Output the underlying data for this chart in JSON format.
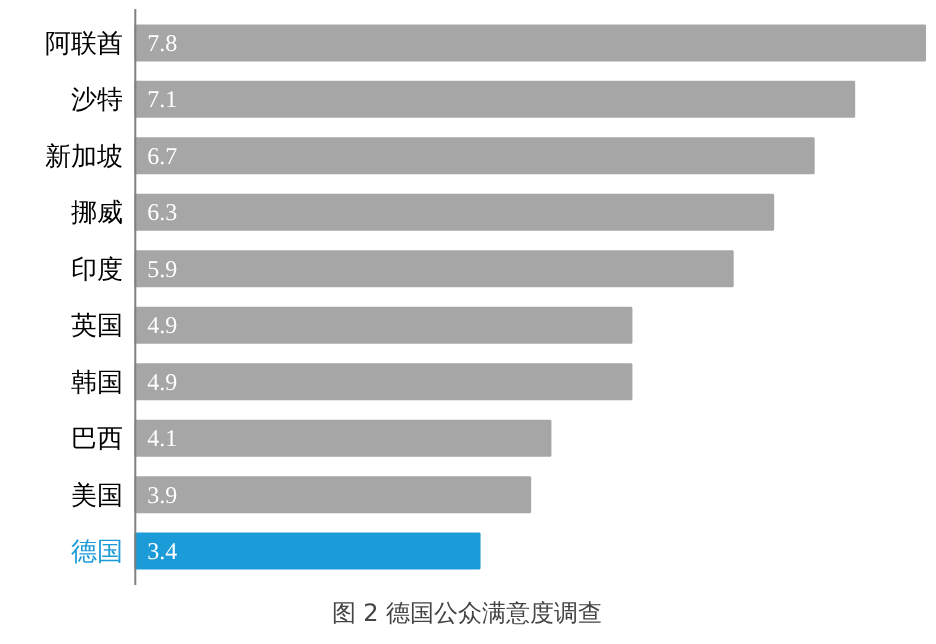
{
  "chart_data": {
    "type": "bar",
    "orientation": "horizontal",
    "title": "图 2 德国公众满意度调查",
    "categories": [
      "阿联酋",
      "沙特",
      "新加坡",
      "挪威",
      "印度",
      "英国",
      "韩国",
      "巴西",
      "美国",
      "德国"
    ],
    "values": [
      7.8,
      7.1,
      6.7,
      6.3,
      5.9,
      4.9,
      4.9,
      4.1,
      3.9,
      3.4
    ],
    "colors": [
      "#a6a6a6",
      "#a6a6a6",
      "#a6a6a6",
      "#a6a6a6",
      "#a6a6a6",
      "#a6a6a6",
      "#a6a6a6",
      "#a6a6a6",
      "#a6a6a6",
      "#1b9bd7"
    ],
    "data_labels": true,
    "grid": false
  }
}
